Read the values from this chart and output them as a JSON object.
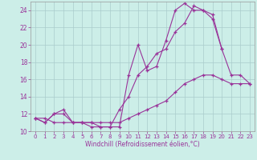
{
  "xlabel": "Windchill (Refroidissement éolien,°C)",
  "background_color": "#cceee8",
  "grid_color": "#aacccc",
  "line_color": "#993399",
  "xlim": [
    -0.5,
    23.5
  ],
  "ylim": [
    10,
    25
  ],
  "xticks": [
    0,
    1,
    2,
    3,
    4,
    5,
    6,
    7,
    8,
    9,
    10,
    11,
    12,
    13,
    14,
    15,
    16,
    17,
    18,
    19,
    20,
    21,
    22,
    23
  ],
  "yticks": [
    10,
    12,
    14,
    16,
    18,
    20,
    22,
    24
  ],
  "series1_x": [
    0,
    1,
    2,
    3,
    4,
    5,
    6,
    7,
    8,
    9,
    10,
    11,
    12,
    13,
    14,
    15,
    16,
    17,
    18,
    19,
    20,
    21,
    22,
    23
  ],
  "series1_y": [
    11.5,
    11.5,
    11.0,
    11.0,
    11.0,
    11.0,
    11.0,
    11.0,
    11.0,
    11.0,
    11.5,
    12.0,
    12.5,
    13.0,
    13.5,
    14.5,
    15.5,
    16.0,
    16.5,
    16.5,
    16.0,
    15.5,
    15.5,
    15.5
  ],
  "series2_x": [
    0,
    1,
    2,
    3,
    4,
    5,
    6,
    7,
    8,
    9,
    10,
    11,
    12,
    13,
    14,
    15,
    16,
    17,
    18,
    19,
    20,
    21,
    22,
    23
  ],
  "series2_y": [
    11.5,
    11.0,
    12.0,
    12.5,
    11.0,
    11.0,
    11.0,
    10.5,
    10.5,
    12.5,
    14.0,
    16.5,
    17.5,
    19.0,
    19.5,
    21.5,
    22.5,
    24.5,
    24.0,
    23.0,
    19.5,
    16.5,
    16.5,
    15.5
  ],
  "series3_x": [
    0,
    1,
    2,
    3,
    4,
    5,
    6,
    7,
    8,
    9,
    10,
    11,
    12,
    13,
    14,
    15,
    16,
    17,
    18,
    19,
    20
  ],
  "series3_y": [
    11.5,
    11.0,
    12.0,
    12.0,
    11.0,
    11.0,
    10.5,
    10.5,
    10.5,
    10.5,
    16.5,
    20.0,
    17.0,
    17.5,
    20.5,
    24.0,
    24.8,
    24.0,
    24.0,
    23.5,
    19.5
  ]
}
